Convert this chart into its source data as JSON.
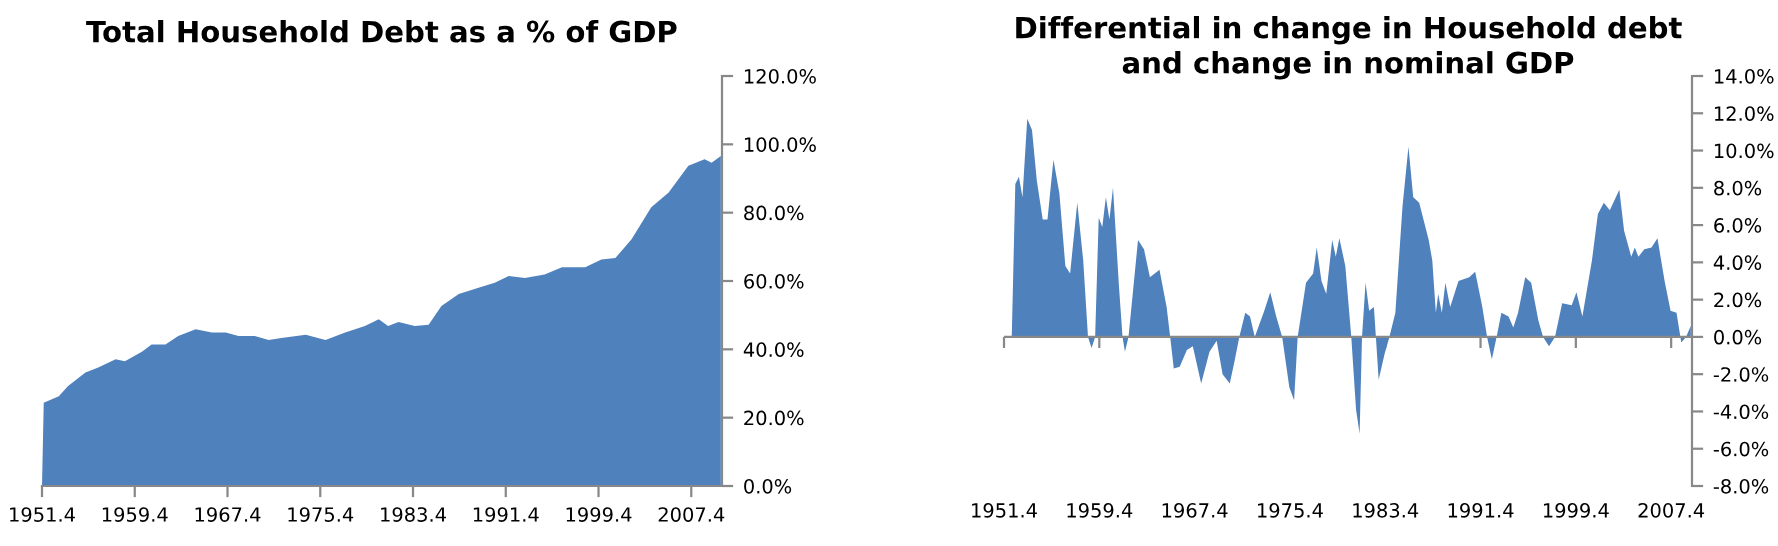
{
  "chart_data": [
    {
      "type": "area",
      "title": "Total Household Debt as a % of GDP",
      "x": [
        1951.4,
        1951.55,
        1952.85,
        1953.65,
        1955.15,
        1956.25,
        1957.75,
        1958.55,
        1960.05,
        1960.85,
        1962.05,
        1963.15,
        1964.65,
        1966.05,
        1967.25,
        1968.35,
        1969.75,
        1970.95,
        1972.05,
        1974.15,
        1975.85,
        1977.55,
        1979.25,
        1980.45,
        1981.25,
        1982.15,
        1983.55,
        1984.75,
        1985.85,
        1987.35,
        1989.05,
        1990.45,
        1991.65,
        1993.05,
        1994.75,
        1996.25,
        1998.25,
        1999.65,
        2000.85,
        2002.25,
        2003.95,
        2005.45,
        2007.15,
        2008.55,
        2009.15,
        2009.95
      ],
      "series": [
        {
          "color": "#4f81bd",
          "values": [
            0,
            24.4,
            26.3,
            29.3,
            33.2,
            34.7,
            37.1,
            36.5,
            39.4,
            41.4,
            41.4,
            43.9,
            45.9,
            44.9,
            44.9,
            43.9,
            43.9,
            42.7,
            43.3,
            44.3,
            42.7,
            44.9,
            46.8,
            48.8,
            46.8,
            48.0,
            46.8,
            47.2,
            52.7,
            56.2,
            58.0,
            59.5,
            61.5,
            60.9,
            61.9,
            64.0,
            64.0,
            66.3,
            66.7,
            72.2,
            81.6,
            85.9,
            93.7,
            95.6,
            94.6,
            96.6
          ]
        }
      ],
      "xlim": [
        1951.4,
        2010.05
      ],
      "xticks": [
        1951.4,
        1959.4,
        1967.4,
        1975.4,
        1983.4,
        1991.4,
        1999.4,
        2007.4
      ],
      "ylim": [
        0,
        120
      ],
      "yticks": [
        {
          "value": 0,
          "label": "0.0%"
        },
        {
          "value": 20,
          "label": "20.0%"
        },
        {
          "value": 40,
          "label": "40.0%"
        },
        {
          "value": 60,
          "label": "60.0%"
        },
        {
          "value": 80,
          "label": "80.0%"
        },
        {
          "value": 100,
          "label": "100.0%"
        },
        {
          "value": 120,
          "label": "120.0%"
        }
      ],
      "grid": false,
      "legend": false
    },
    {
      "type": "area",
      "title": "Differential in change in Household debt\nand change in nominal GDP",
      "x": [
        1952.05,
        1952.35,
        1952.65,
        1952.95,
        1953.35,
        1953.75,
        1954.15,
        1954.65,
        1955.05,
        1955.55,
        1956.05,
        1956.55,
        1956.95,
        1957.55,
        1958.05,
        1958.45,
        1958.75,
        1959.05,
        1959.35,
        1959.65,
        1959.95,
        1960.25,
        1960.55,
        1961.05,
        1961.35,
        1961.55,
        1961.85,
        1962.65,
        1963.15,
        1963.65,
        1964.45,
        1965.05,
        1965.35,
        1965.65,
        1966.15,
        1966.75,
        1967.25,
        1967.95,
        1968.65,
        1969.25,
        1969.75,
        1970.35,
        1970.75,
        1971.15,
        1971.65,
        1972.05,
        1972.45,
        1972.85,
        1973.25,
        1973.75,
        1974.25,
        1974.75,
        1975.35,
        1975.75,
        1976.05,
        1976.75,
        1977.35,
        1977.65,
        1978.05,
        1978.45,
        1978.95,
        1979.25,
        1979.55,
        1980.05,
        1980.55,
        1980.95,
        1981.25,
        1981.45,
        1981.75,
        1982.05,
        1982.45,
        1982.85,
        1983.35,
        1983.75,
        1984.25,
        1984.85,
        1985.35,
        1985.75,
        1986.25,
        1987.05,
        1987.35,
        1987.65,
        1987.85,
        1988.15,
        1988.45,
        1988.85,
        1989.55,
        1990.45,
        1990.95,
        1991.55,
        1991.95,
        1992.35,
        1992.75,
        1993.15,
        1993.75,
        1994.15,
        1994.55,
        1995.15,
        1995.65,
        1996.25,
        1996.65,
        1997.15,
        1997.65,
        1998.25,
        1999.05,
        1999.45,
        1999.95,
        2000.75,
        2001.25,
        2001.75,
        2002.25,
        2003.05,
        2003.45,
        2004.05,
        2004.35,
        2004.65,
        2005.15,
        2005.75,
        2006.25,
        2006.85,
        2007.35,
        2007.85,
        2008.25,
        2008.65,
        2009.05
      ],
      "series": [
        {
          "color": "#4f81bd",
          "values": [
            0,
            8.2,
            8.6,
            7.5,
            11.7,
            11.1,
            8.4,
            6.3,
            6.3,
            9.5,
            7.7,
            3.8,
            3.4,
            7.2,
            4.1,
            0,
            -0.6,
            0,
            6.4,
            5.9,
            7.5,
            6.3,
            8.0,
            2.7,
            0,
            -0.8,
            0,
            5.2,
            4.7,
            3.2,
            3.6,
            1.6,
            0,
            -1.7,
            -1.6,
            -0.7,
            -0.5,
            -2.5,
            -0.8,
            -0.2,
            -2.0,
            -2.5,
            -1.3,
            0,
            1.3,
            1.1,
            0,
            0.7,
            1.4,
            2.4,
            1.1,
            0,
            -2.7,
            -3.4,
            0,
            2.9,
            3.4,
            4.8,
            3.0,
            2.3,
            5.2,
            4.3,
            5.3,
            3.8,
            0,
            -3.9,
            -5.2,
            0,
            2.9,
            1.4,
            1.6,
            -2.3,
            -0.9,
            0,
            1.3,
            7.0,
            10.2,
            7.5,
            7.2,
            5.2,
            4.1,
            1.3,
            2.3,
            1.3,
            2.9,
            1.6,
            3.0,
            3.2,
            3.5,
            1.6,
            0,
            -1.2,
            0,
            1.3,
            1.1,
            0.5,
            1.3,
            3.2,
            2.9,
            0.9,
            0,
            -0.5,
            0,
            1.8,
            1.7,
            2.4,
            1.1,
            4.1,
            6.6,
            7.2,
            6.8,
            7.9,
            5.7,
            4.3,
            4.8,
            4.3,
            4.7,
            4.8,
            5.3,
            3.0,
            1.4,
            1.3,
            -0.3,
            0,
            0.6
          ]
        }
      ],
      "xlim": [
        1951.4,
        2009.15
      ],
      "xticks": [
        1951.4,
        1959.4,
        1967.4,
        1975.4,
        1983.4,
        1991.4,
        1999.4,
        2007.4
      ],
      "ref_lines": [
        {
          "axis": "y",
          "value": 0,
          "color": "#888888"
        }
      ],
      "ylim": [
        -8,
        14
      ],
      "yticks": [
        {
          "value": -8,
          "label": "-8.0%"
        },
        {
          "value": -6,
          "label": "-6.0%"
        },
        {
          "value": -4,
          "label": "-4.0%"
        },
        {
          "value": -2,
          "label": "-2.0%"
        },
        {
          "value": 0,
          "label": "0.0%"
        },
        {
          "value": 2,
          "label": "2.0%"
        },
        {
          "value": 4,
          "label": "4.0%"
        },
        {
          "value": 6,
          "label": "6.0%"
        },
        {
          "value": 8,
          "label": "8.0%"
        },
        {
          "value": 10,
          "label": "10.0%"
        },
        {
          "value": 12,
          "label": "12.0%"
        },
        {
          "value": 14,
          "label": "14.0%"
        }
      ],
      "grid": false,
      "legend": false
    }
  ]
}
